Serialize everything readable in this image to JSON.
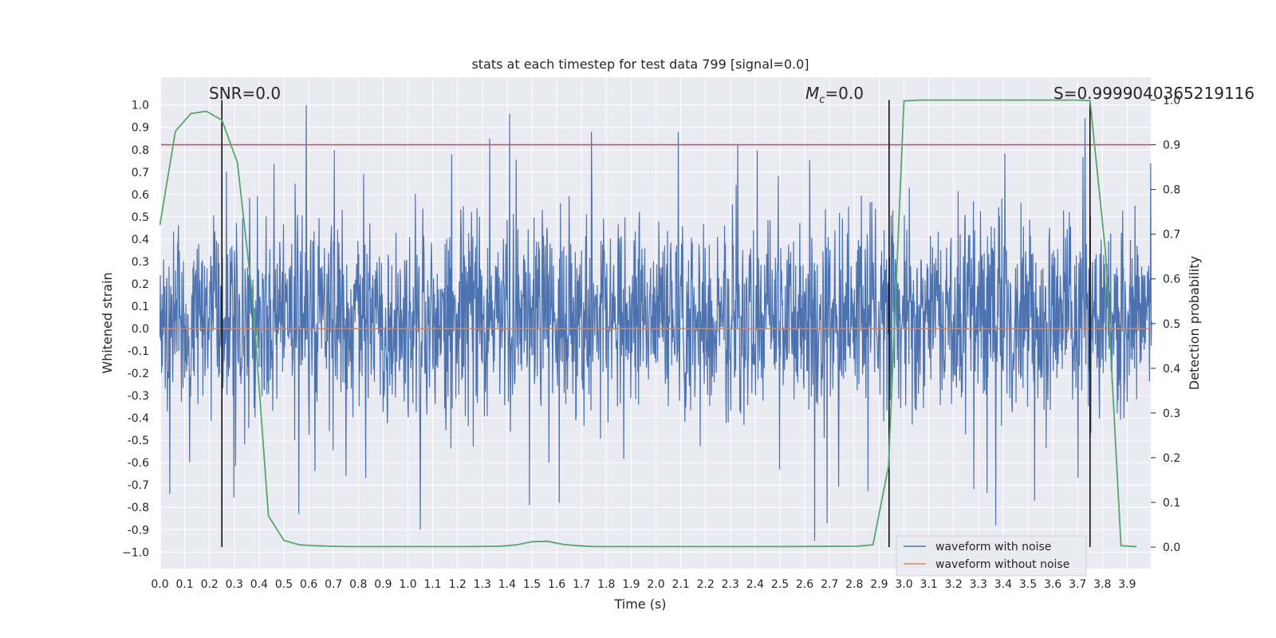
{
  "chart_data": {
    "type": "line",
    "title": "stats at each timestep for test data 799 [signal=0.0]",
    "xlabel": "Time (s)",
    "ylabel": "Whitened strain",
    "y2label": "Detection probability",
    "xlim": [
      0.0,
      4.0
    ],
    "ylim": [
      -1.05,
      1.05
    ],
    "y2lim": [
      -0.05,
      1.05
    ],
    "xticks": [
      "0.0",
      "0.1",
      "0.2",
      "0.3",
      "0.4",
      "0.5",
      "0.6",
      "0.7",
      "0.8",
      "0.9",
      "1.0",
      "1.1",
      "1.2",
      "1.3",
      "1.4",
      "1.5",
      "1.6",
      "1.7",
      "1.8",
      "1.9",
      "2.0",
      "2.1",
      "2.2",
      "2.3",
      "2.4",
      "2.5",
      "2.6",
      "2.7",
      "2.8",
      "2.9",
      "3.0",
      "3.1",
      "3.2",
      "3.3",
      "3.4",
      "3.5",
      "3.6",
      "3.7",
      "3.8",
      "3.9"
    ],
    "yticks": [
      "1.0",
      "0.9",
      "0.8",
      "0.7",
      "0.6",
      "0.5",
      "0.4",
      "0.3",
      "0.2",
      "0.1",
      "0.0",
      "-0.1",
      "-0.2",
      "-0.3",
      "-0.4",
      "-0.5",
      "-0.6",
      "-0.7",
      "-0.8",
      "-0.9",
      "−1.0"
    ],
    "y2ticks": [
      "1.0",
      "0.9",
      "0.8",
      "0.7",
      "0.6",
      "0.5",
      "0.4",
      "0.3",
      "0.2",
      "0.1",
      "0.0"
    ],
    "annotations": {
      "snr": "SNR=0.0",
      "mc_symbol": "M",
      "mc_sub": "c",
      "mc_value": "=0.0",
      "s_label": "S=0.9999040365219116"
    },
    "threshold_line": {
      "axis": "y2",
      "value": 0.9,
      "color": "#c44e52"
    },
    "vertical_markers": [
      0.25,
      2.94,
      3.75
    ],
    "series": [
      {
        "name": "waveform with noise",
        "color": "#4c72b0",
        "kind": "noise",
        "envelope": {
          "typical_min": -0.35,
          "typical_max": 0.5,
          "peak_min": -0.95,
          "peak_max": 1.0,
          "samples": 4096
        },
        "peaks": [
          {
            "t": 0.59,
            "v": 1.0
          },
          {
            "t": 1.41,
            "v": 0.96
          },
          {
            "t": 1.33,
            "v": 0.85
          },
          {
            "t": 1.74,
            "v": 0.88
          },
          {
            "t": 2.09,
            "v": 0.88
          },
          {
            "t": 2.33,
            "v": 0.82
          },
          {
            "t": 3.73,
            "v": 0.94
          },
          {
            "t": 2.64,
            "v": -0.95
          },
          {
            "t": 2.69,
            "v": -0.87
          },
          {
            "t": 1.05,
            "v": -0.9
          },
          {
            "t": 0.04,
            "v": -0.74
          },
          {
            "t": 3.37,
            "v": -0.88
          },
          {
            "t": 1.61,
            "v": -0.78
          },
          {
            "t": 0.56,
            "v": -0.83
          }
        ]
      },
      {
        "name": "waveform without noise",
        "color": "#dd8452",
        "kind": "constant",
        "value": 0.0
      },
      {
        "name": "detection probability",
        "color": "#55a868",
        "axis": "y2",
        "x": [
          0.0,
          0.0625,
          0.125,
          0.1875,
          0.25,
          0.3125,
          0.375,
          0.4375,
          0.5,
          0.5625,
          0.625,
          0.6875,
          0.75,
          1.0,
          1.25,
          1.375,
          1.4375,
          1.5,
          1.5625,
          1.625,
          1.6875,
          1.75,
          2.0,
          2.5,
          2.8125,
          2.875,
          2.9375,
          3.0,
          3.0625,
          3.125,
          3.5,
          3.6875,
          3.75,
          3.8125,
          3.875,
          3.9375
        ],
        "values": [
          0.72,
          0.93,
          0.97,
          0.975,
          0.955,
          0.86,
          0.55,
          0.07,
          0.015,
          0.005,
          0.003,
          0.002,
          0.001,
          0.001,
          0.001,
          0.002,
          0.005,
          0.012,
          0.013,
          0.006,
          0.003,
          0.001,
          0.001,
          0.001,
          0.002,
          0.005,
          0.18,
          0.998,
          1.0,
          1.0,
          1.0,
          1.0,
          0.999,
          0.66,
          0.003,
          0.001
        ]
      }
    ],
    "legend": [
      "waveform with noise",
      "waveform without noise"
    ]
  }
}
